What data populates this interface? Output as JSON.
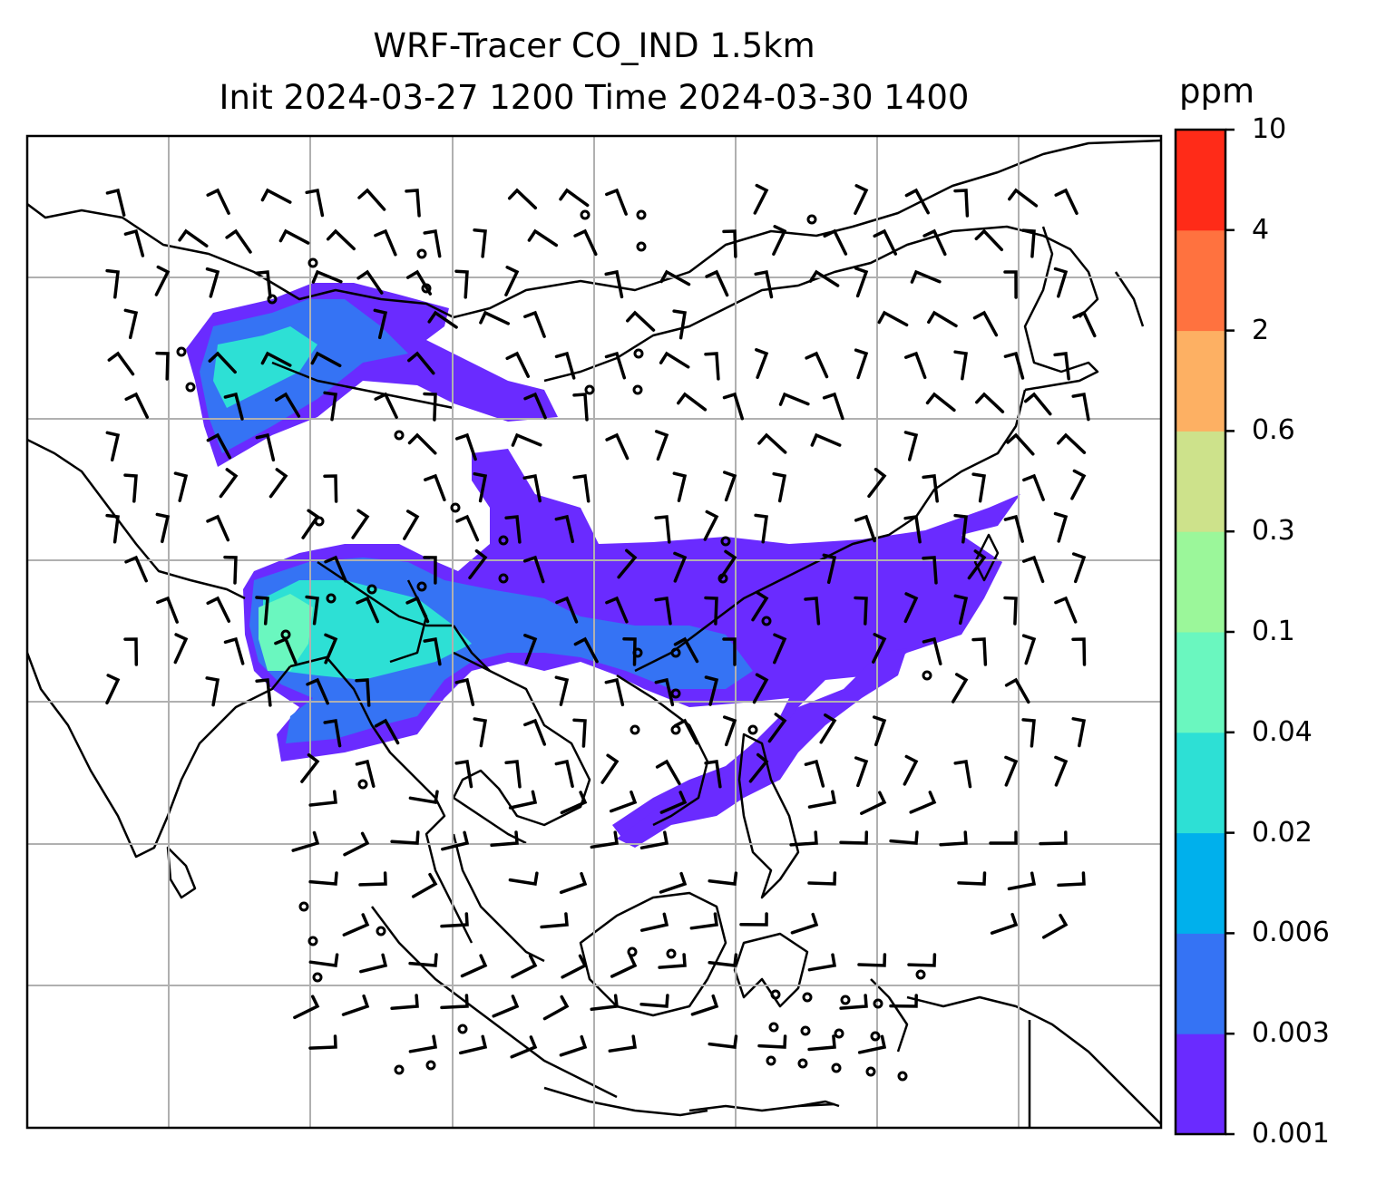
{
  "title": {
    "line1": "WRF-Tracer CO_IND 1.5km",
    "line2": "Init 2024-03-27 1200 Time 2024-03-30 1400"
  },
  "colorbar": {
    "unit": "ppm",
    "ticks": [
      "0.001",
      "0.003",
      "0.006",
      "0.02",
      "0.04",
      "0.1",
      "0.3",
      "0.6",
      "2",
      "4",
      "10"
    ],
    "colors": [
      "#6a2bff",
      "#3573f4",
      "#00b0ec",
      "#2de0d5",
      "#6af7bf",
      "#9bf79a",
      "#cde28b",
      "#fdb063",
      "#ff723f",
      "#ff2b18"
    ]
  },
  "map": {
    "gridlines": true,
    "gridline_color": "#b0b0b0",
    "coastline_color": "#000000",
    "wind_barbs": true
  }
}
